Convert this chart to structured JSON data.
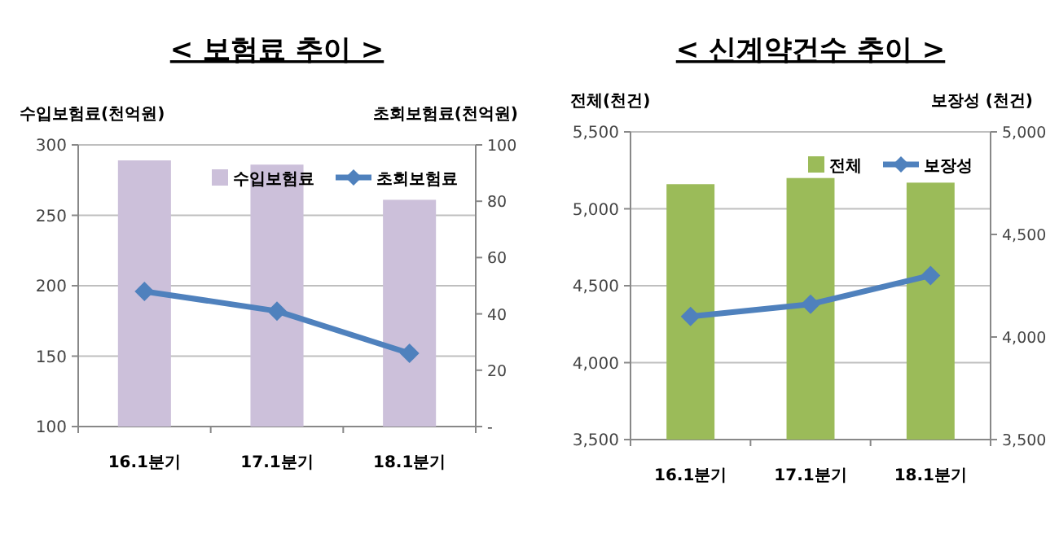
{
  "chart_data": [
    {
      "type": "bar",
      "title": "< 보험료 추이 >",
      "ylabel": "수입보험료(천억원)",
      "y2label": "초회보험료(천억원)",
      "categories": [
        "16.1분기",
        "17.1분기",
        "18.1분기"
      ],
      "series": [
        {
          "name": "수입보험료",
          "color": "#ccc0da",
          "values": [
            289,
            286,
            261
          ]
        },
        {
          "name": "초회보험료",
          "type": "line",
          "axis": "y2",
          "color": "#4f81bd",
          "values": [
            48,
            41,
            26
          ]
        }
      ],
      "ylim": [
        100,
        300
      ],
      "yticks": [
        100,
        150,
        200,
        250,
        300
      ],
      "y2lim": [
        0,
        100
      ],
      "y2ticks": [
        {
          "value": 0,
          "label": "-"
        },
        20,
        40,
        60,
        80,
        100
      ],
      "grid": "y",
      "legend": "top right",
      "marker": "diamond",
      "line_style": "solid"
    },
    {
      "type": "bar",
      "title": "< 신계약건수 추이 >",
      "ylabel": "전체(천건)",
      "y2label": "보장성 (천건)",
      "categories": [
        "16.1분기",
        "17.1분기",
        "18.1분기"
      ],
      "series": [
        {
          "name": "전체",
          "color": "#9bbb59",
          "values": [
            5160,
            5200,
            5170
          ]
        },
        {
          "name": "보장성",
          "type": "line",
          "axis": "y2",
          "color": "#4f81bd",
          "values": [
            4100,
            4160,
            4300
          ]
        }
      ],
      "ylim": [
        3500,
        5500
      ],
      "yticks": [
        {
          "value": 3500,
          "label": "3,500"
        },
        {
          "value": 4000,
          "label": "4,000"
        },
        {
          "value": 4500,
          "label": "4,500"
        },
        {
          "value": 5000,
          "label": "5,000"
        },
        {
          "value": 5500,
          "label": "5,500"
        }
      ],
      "y2lim": [
        3500,
        5000
      ],
      "y2ticks": [
        {
          "value": 3500,
          "label": "3,500"
        },
        {
          "value": 4000,
          "label": "4,000"
        },
        {
          "value": 4500,
          "label": "4,500"
        },
        {
          "value": 5000,
          "label": "5,000"
        }
      ],
      "grid": "y",
      "legend": "top right",
      "marker": "diamond",
      "line_style": "solid"
    }
  ]
}
